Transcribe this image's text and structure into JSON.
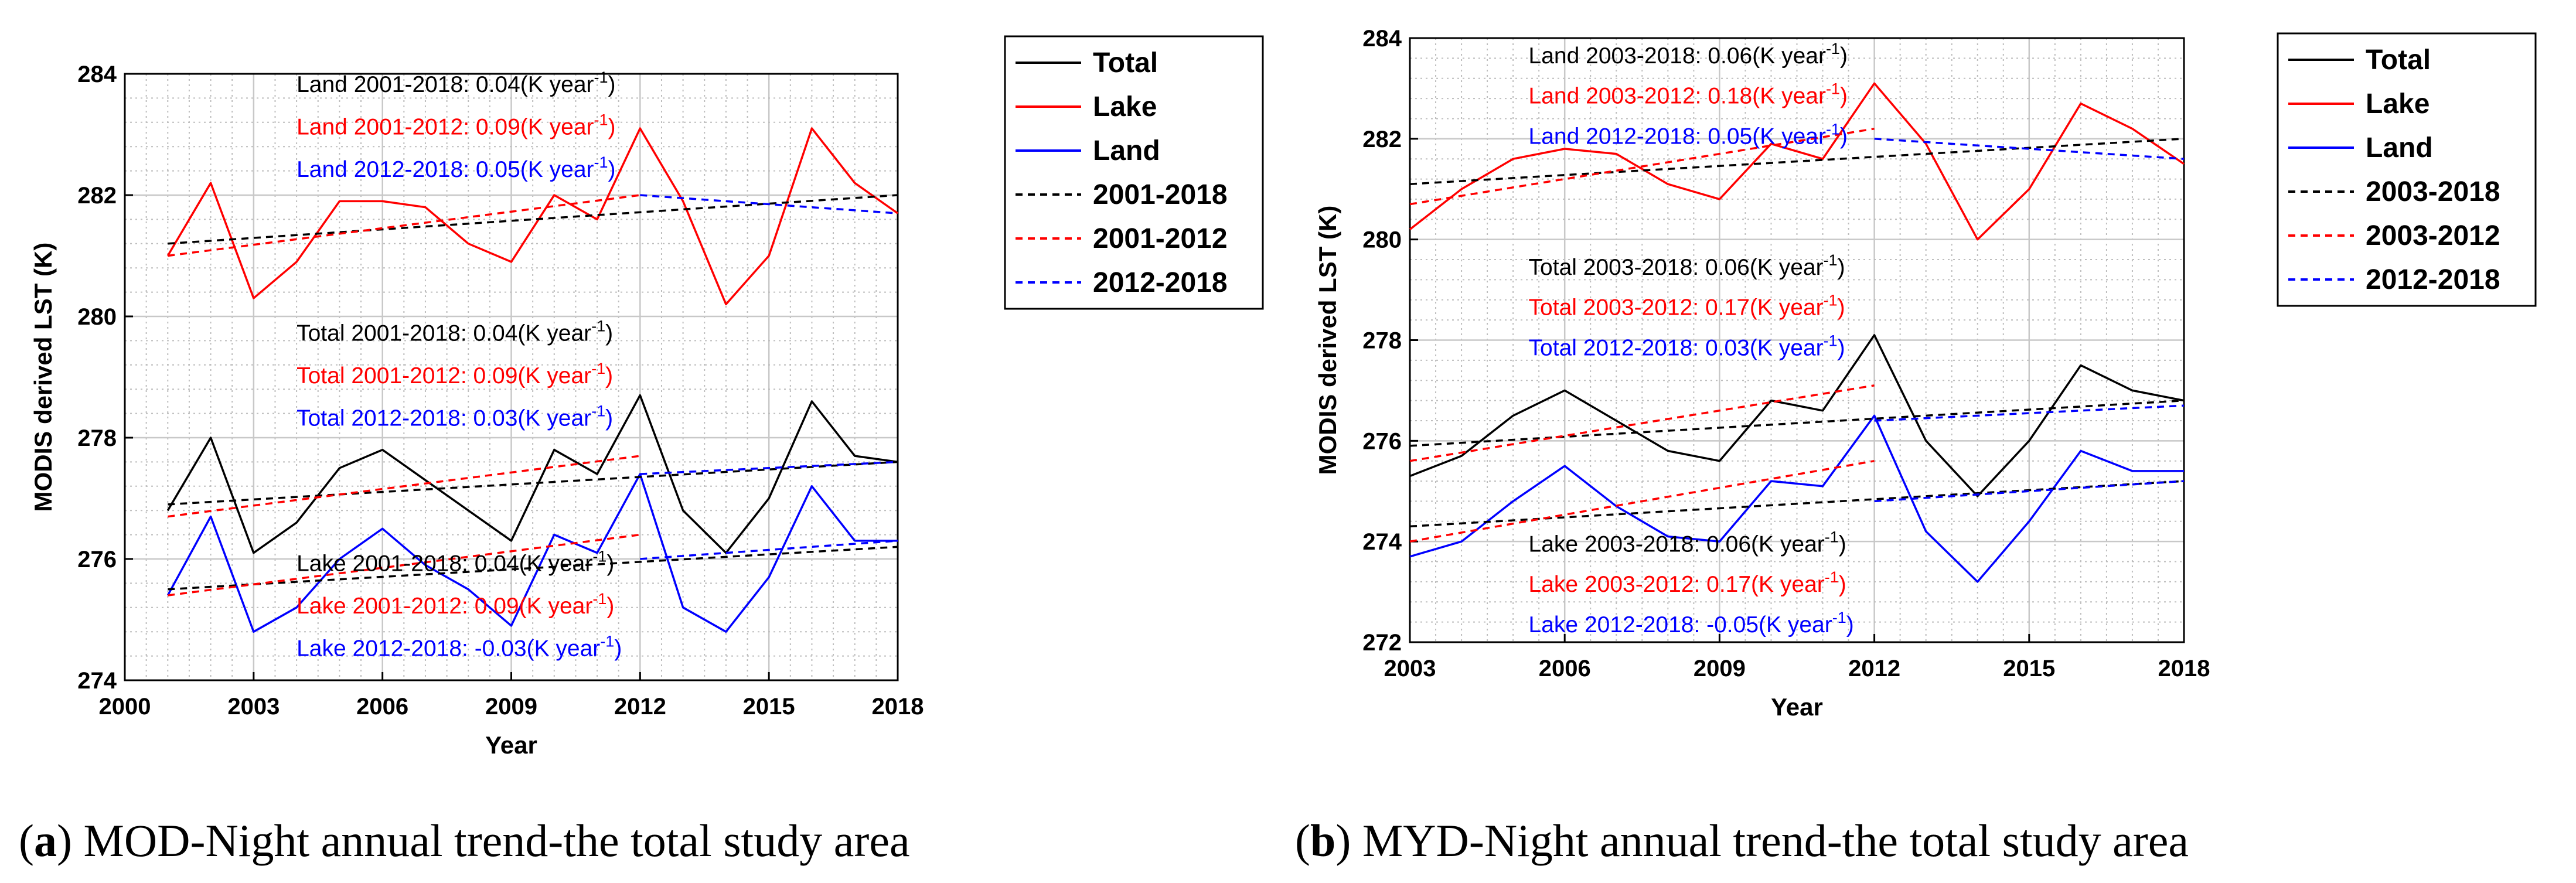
{
  "chart_data": [
    {
      "type": "line",
      "panel": "a",
      "xlabel": "Year",
      "ylabel": "MODIS derived LST (K)",
      "xlim": [
        2000,
        2018
      ],
      "ylim": [
        274,
        284
      ],
      "xticks": [
        2000,
        2003,
        2006,
        2009,
        2012,
        2015,
        2018
      ],
      "yticks": [
        274,
        276,
        278,
        280,
        282,
        284
      ],
      "grid": true,
      "legend_position": "outside-right",
      "legend": [
        "Total",
        "Lake",
        "Land",
        "2001-2018",
        "2001-2012",
        "2012-2018"
      ],
      "colors": {
        "black": "#000000",
        "red": "#ff0000",
        "blue": "#0000ff"
      },
      "x": [
        2001,
        2002,
        2003,
        2004,
        2005,
        2006,
        2007,
        2008,
        2009,
        2010,
        2011,
        2012,
        2013,
        2014,
        2015,
        2016,
        2017,
        2018
      ],
      "series": [
        {
          "name": "Total",
          "color": "#000000",
          "style": "solid",
          "values": [
            276.8,
            278.0,
            276.1,
            276.6,
            277.5,
            277.8,
            277.3,
            276.8,
            276.3,
            277.8,
            277.4,
            278.7,
            276.8,
            276.1,
            277.0,
            278.6,
            277.7,
            277.6
          ]
        },
        {
          "name": "Lake",
          "color": "#ff0000",
          "style": "solid",
          "values": [
            281.0,
            282.2,
            280.3,
            280.9,
            281.9,
            281.9,
            281.8,
            281.2,
            280.9,
            282.0,
            281.6,
            283.1,
            281.9,
            280.2,
            281.0,
            283.1,
            282.2,
            281.7
          ]
        },
        {
          "name": "Land",
          "color": "#0000ff",
          "style": "solid",
          "values": [
            275.4,
            276.7,
            274.8,
            275.2,
            276.0,
            276.5,
            275.9,
            275.5,
            274.9,
            276.4,
            276.1,
            277.4,
            275.2,
            274.8,
            275.7,
            277.2,
            276.3,
            276.3
          ]
        },
        {
          "name": "2001-2018 (Lake)",
          "color": "#000000",
          "style": "dashed",
          "x": [
            2001,
            2018
          ],
          "values": [
            281.2,
            282.0
          ]
        },
        {
          "name": "2001-2012 (Lake)",
          "color": "#ff0000",
          "style": "dashed",
          "x": [
            2001,
            2012
          ],
          "values": [
            281.0,
            282.0
          ]
        },
        {
          "name": "2012-2018 (Lake)",
          "color": "#0000ff",
          "style": "dashed",
          "x": [
            2012,
            2018
          ],
          "values": [
            282.0,
            281.7
          ]
        },
        {
          "name": "2001-2018 (Total)",
          "color": "#000000",
          "style": "dashed",
          "x": [
            2001,
            2018
          ],
          "values": [
            276.9,
            277.6
          ]
        },
        {
          "name": "2001-2012 (Total)",
          "color": "#ff0000",
          "style": "dashed",
          "x": [
            2001,
            2012
          ],
          "values": [
            276.7,
            277.7
          ]
        },
        {
          "name": "2012-2018 (Total)",
          "color": "#0000ff",
          "style": "dashed",
          "x": [
            2012,
            2018
          ],
          "values": [
            277.4,
            277.6
          ]
        },
        {
          "name": "2001-2018 (Land)",
          "color": "#000000",
          "style": "dashed",
          "x": [
            2001,
            2018
          ],
          "values": [
            275.5,
            276.2
          ]
        },
        {
          "name": "2001-2012 (Land)",
          "color": "#ff0000",
          "style": "dashed",
          "x": [
            2001,
            2012
          ],
          "values": [
            275.4,
            276.4
          ]
        },
        {
          "name": "2012-2018 (Land)",
          "color": "#0000ff",
          "style": "dashed",
          "x": [
            2012,
            2018
          ],
          "values": [
            276.0,
            276.3
          ]
        }
      ],
      "annotations": [
        {
          "label": "Land 2001-2018: 0.04",
          "unit": "(K year",
          "exp": "-1",
          "close": ")",
          "color": "#000000",
          "x": 2004.0,
          "y": 283.7
        },
        {
          "label": "Land 2001-2012: 0.09",
          "unit": "(K year",
          "exp": "-1",
          "close": ")",
          "color": "#ff0000",
          "x": 2004.0,
          "y": 283.0
        },
        {
          "label": "Land 2012-2018: 0.05",
          "unit": "(K year",
          "exp": "-1",
          "close": ")",
          "color": "#0000ff",
          "x": 2004.0,
          "y": 282.3
        },
        {
          "label": "Total 2001-2018: 0.04",
          "unit": "(K year",
          "exp": "-1",
          "close": ")",
          "color": "#000000",
          "x": 2004.0,
          "y": 279.6
        },
        {
          "label": "Total 2001-2012: 0.09",
          "unit": "(K year",
          "exp": "-1",
          "close": ")",
          "color": "#ff0000",
          "x": 2004.0,
          "y": 278.9
        },
        {
          "label": "Total 2012-2018: 0.03",
          "unit": "(K year",
          "exp": "-1",
          "close": ")",
          "color": "#0000ff",
          "x": 2004.0,
          "y": 278.2
        },
        {
          "label": "Lake 2001-2018: 0.04",
          "unit": "(K year",
          "exp": "-1",
          "close": ")",
          "color": "#000000",
          "x": 2004.0,
          "y": 275.8
        },
        {
          "label": "Lake 2001-2012: 0.09",
          "unit": "(K year",
          "exp": "-1",
          "close": ")",
          "color": "#ff0000",
          "x": 2004.0,
          "y": 275.1
        },
        {
          "label": "Lake 2012-2018: -0.03",
          "unit": "(K year",
          "exp": "-1",
          "close": ")",
          "color": "#0000ff",
          "x": 2004.0,
          "y": 274.4
        }
      ]
    },
    {
      "type": "line",
      "panel": "b",
      "xlabel": "Year",
      "ylabel": "MODIS derived LST (K)",
      "xlim": [
        2003,
        2018
      ],
      "ylim": [
        272,
        284
      ],
      "xticks": [
        2003,
        2006,
        2009,
        2012,
        2015,
        2018
      ],
      "yticks": [
        272,
        274,
        276,
        278,
        280,
        282,
        284
      ],
      "grid": true,
      "legend_position": "outside-right",
      "legend": [
        "Total",
        "Lake",
        "Land",
        "2003-2018",
        "2003-2012",
        "2012-2018"
      ],
      "colors": {
        "black": "#000000",
        "red": "#ff0000",
        "blue": "#0000ff"
      },
      "x": [
        2003,
        2004,
        2005,
        2006,
        2007,
        2008,
        2009,
        2010,
        2011,
        2012,
        2013,
        2014,
        2015,
        2016,
        2017,
        2018
      ],
      "series": [
        {
          "name": "Total",
          "color": "#000000",
          "style": "solid",
          "values": [
            275.3,
            275.7,
            276.5,
            277.0,
            276.4,
            275.8,
            275.6,
            276.8,
            276.6,
            278.1,
            276.0,
            274.9,
            276.0,
            277.5,
            277.0,
            276.8
          ]
        },
        {
          "name": "Lake",
          "color": "#ff0000",
          "style": "solid",
          "values": [
            280.2,
            281.0,
            281.6,
            281.8,
            281.7,
            281.1,
            280.8,
            281.9,
            281.6,
            283.1,
            281.9,
            280.0,
            281.0,
            282.7,
            282.2,
            281.5
          ]
        },
        {
          "name": "Land",
          "color": "#0000ff",
          "style": "solid",
          "values": [
            273.7,
            274.0,
            274.8,
            275.5,
            274.7,
            274.1,
            274.0,
            275.2,
            275.1,
            276.5,
            274.2,
            273.2,
            274.4,
            275.8,
            275.4,
            275.4
          ]
        },
        {
          "name": "2003-2018 (Lake)",
          "color": "#000000",
          "style": "dashed",
          "x": [
            2003,
            2018
          ],
          "values": [
            281.1,
            282.0
          ]
        },
        {
          "name": "2003-2012 (Lake)",
          "color": "#ff0000",
          "style": "dashed",
          "x": [
            2003,
            2012
          ],
          "values": [
            280.7,
            282.2
          ]
        },
        {
          "name": "2012-2018 (Lake)",
          "color": "#0000ff",
          "style": "dashed",
          "x": [
            2012,
            2018
          ],
          "values": [
            282.0,
            281.6
          ]
        },
        {
          "name": "2003-2018 (Total)",
          "color": "#000000",
          "style": "dashed",
          "x": [
            2003,
            2018
          ],
          "values": [
            275.9,
            276.8
          ]
        },
        {
          "name": "2003-2012 (Total)",
          "color": "#ff0000",
          "style": "dashed",
          "x": [
            2003,
            2012
          ],
          "values": [
            275.6,
            277.1
          ]
        },
        {
          "name": "2012-2018 (Total)",
          "color": "#0000ff",
          "style": "dashed",
          "x": [
            2012,
            2018
          ],
          "values": [
            276.4,
            276.7
          ]
        },
        {
          "name": "2003-2018 (Land)",
          "color": "#000000",
          "style": "dashed",
          "x": [
            2003,
            2018
          ],
          "values": [
            274.3,
            275.2
          ]
        },
        {
          "name": "2003-2012 (Land)",
          "color": "#ff0000",
          "style": "dashed",
          "x": [
            2003,
            2012
          ],
          "values": [
            274.0,
            275.6
          ]
        },
        {
          "name": "2012-2018 (Land)",
          "color": "#0000ff",
          "style": "dashed",
          "x": [
            2012,
            2018
          ],
          "values": [
            274.8,
            275.2
          ]
        }
      ],
      "annotations": [
        {
          "label": "Land 2003-2018: 0.06",
          "unit": "(K year",
          "exp": "-1",
          "close": ")",
          "color": "#000000",
          "x": 2005.3,
          "y": 283.5
        },
        {
          "label": "Land 2003-2012: 0.18",
          "unit": "(K year",
          "exp": "-1",
          "close": ")",
          "color": "#ff0000",
          "x": 2005.3,
          "y": 282.7
        },
        {
          "label": "Land 2012-2018: 0.05",
          "unit": "(K year",
          "exp": "-1",
          "close": ")",
          "color": "#0000ff",
          "x": 2005.3,
          "y": 281.9
        },
        {
          "label": "Total 2003-2018: 0.06",
          "unit": "(K year",
          "exp": "-1",
          "close": ")",
          "color": "#000000",
          "x": 2005.3,
          "y": 279.3
        },
        {
          "label": "Total 2003-2012: 0.17",
          "unit": "(K year",
          "exp": "-1",
          "close": ")",
          "color": "#ff0000",
          "x": 2005.3,
          "y": 278.5
        },
        {
          "label": "Total 2012-2018: 0.03",
          "unit": "(K year",
          "exp": "-1",
          "close": ")",
          "color": "#0000ff",
          "x": 2005.3,
          "y": 277.7
        },
        {
          "label": "Lake 2003-2018: 0.06",
          "unit": "(K year",
          "exp": "-1",
          "close": ")",
          "color": "#000000",
          "x": 2005.3,
          "y": 273.8
        },
        {
          "label": "Lake 2003-2012: 0.17",
          "unit": "(K year",
          "exp": "-1",
          "close": ")",
          "color": "#ff0000",
          "x": 2005.3,
          "y": 273.0
        },
        {
          "label": "Lake 2012-2018: -0.05",
          "unit": "(K year",
          "exp": "-1",
          "close": ")",
          "color": "#0000ff",
          "x": 2005.3,
          "y": 272.2
        }
      ]
    }
  ],
  "captions": [
    {
      "letter": "a",
      "open": "(",
      "close": ")",
      "text": " MOD-Night annual trend-the total study area"
    },
    {
      "letter": "b",
      "open": "(",
      "close": ")",
      "text": " MYD-Night annual trend-the total study area"
    }
  ]
}
